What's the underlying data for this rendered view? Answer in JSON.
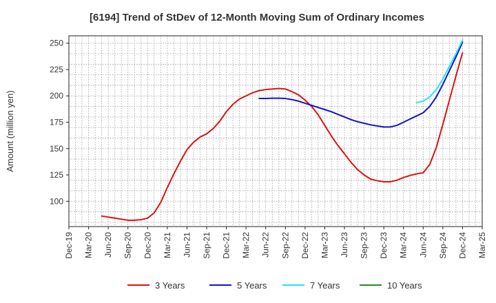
{
  "chart_data": {
    "type": "line",
    "title": "[6194]  Trend of StDev of 12-Month Moving Sum of Ordinary Incomes",
    "ylabel": "Amount (million yen)",
    "xlabel": "",
    "y_ticks": [
      100,
      125,
      150,
      175,
      200,
      225,
      250
    ],
    "ylim": [
      76,
      257
    ],
    "x_ticks": [
      "Dec-19",
      "Mar-20",
      "Jun-20",
      "Sep-20",
      "Dec-20",
      "Mar-21",
      "Jun-21",
      "Sep-21",
      "Dec-21",
      "Mar-22",
      "Jun-22",
      "Sep-22",
      "Dec-22",
      "Mar-23",
      "Jun-23",
      "Sep-23",
      "Dec-23",
      "Mar-24",
      "Jun-24",
      "Sep-24",
      "Dec-24",
      "Mar-25"
    ],
    "xlim": [
      "2019-12",
      "2025-03"
    ],
    "grid": true,
    "legend_position": "bottom",
    "series": [
      {
        "name": "3 Years",
        "color": "#dd1111",
        "points": [
          [
            "2020-05",
            86
          ],
          [
            "2020-06",
            85
          ],
          [
            "2020-07",
            84
          ],
          [
            "2020-08",
            83
          ],
          [
            "2020-09",
            82
          ],
          [
            "2020-10",
            82
          ],
          [
            "2020-11",
            82.5
          ],
          [
            "2020-12",
            84
          ],
          [
            "2021-01",
            89
          ],
          [
            "2021-02",
            99
          ],
          [
            "2021-03",
            113
          ],
          [
            "2021-04",
            126
          ],
          [
            "2021-05",
            138
          ],
          [
            "2021-06",
            149
          ],
          [
            "2021-07",
            156
          ],
          [
            "2021-08",
            161
          ],
          [
            "2021-09",
            164
          ],
          [
            "2021-10",
            169
          ],
          [
            "2021-11",
            176
          ],
          [
            "2021-12",
            185
          ],
          [
            "2022-01",
            192
          ],
          [
            "2022-02",
            197
          ],
          [
            "2022-03",
            200
          ],
          [
            "2022-04",
            203
          ],
          [
            "2022-05",
            205
          ],
          [
            "2022-06",
            206
          ],
          [
            "2022-07",
            206.5
          ],
          [
            "2022-08",
            207
          ],
          [
            "2022-09",
            206.5
          ],
          [
            "2022-10",
            204
          ],
          [
            "2022-11",
            201
          ],
          [
            "2022-12",
            196
          ],
          [
            "2023-01",
            190
          ],
          [
            "2023-02",
            182
          ],
          [
            "2023-03",
            172
          ],
          [
            "2023-04",
            162
          ],
          [
            "2023-05",
            153
          ],
          [
            "2023-06",
            145
          ],
          [
            "2023-07",
            137
          ],
          [
            "2023-08",
            130
          ],
          [
            "2023-09",
            125
          ],
          [
            "2023-10",
            121
          ],
          [
            "2023-11",
            119.5
          ],
          [
            "2023-12",
            118.5
          ],
          [
            "2024-01",
            118.5
          ],
          [
            "2024-02",
            120
          ],
          [
            "2024-03",
            122.5
          ],
          [
            "2024-04",
            124.5
          ],
          [
            "2024-05",
            126
          ],
          [
            "2024-06",
            127
          ],
          [
            "2024-07",
            135
          ],
          [
            "2024-08",
            151
          ],
          [
            "2024-09",
            173
          ],
          [
            "2024-10",
            196
          ],
          [
            "2024-11",
            219
          ],
          [
            "2024-12",
            241
          ]
        ]
      },
      {
        "name": "5 Years",
        "color": "#1111cc",
        "points": [
          [
            "2022-05",
            197.5
          ],
          [
            "2022-06",
            197.5
          ],
          [
            "2022-07",
            197.8
          ],
          [
            "2022-08",
            197.8
          ],
          [
            "2022-09",
            197.5
          ],
          [
            "2022-10",
            196.5
          ],
          [
            "2022-11",
            195
          ],
          [
            "2022-12",
            193
          ],
          [
            "2023-01",
            191
          ],
          [
            "2023-02",
            189
          ],
          [
            "2023-03",
            187
          ],
          [
            "2023-04",
            185
          ],
          [
            "2023-05",
            182.5
          ],
          [
            "2023-06",
            180
          ],
          [
            "2023-07",
            177.5
          ],
          [
            "2023-08",
            175.5
          ],
          [
            "2023-09",
            174
          ],
          [
            "2023-10",
            172.5
          ],
          [
            "2023-11",
            171.5
          ],
          [
            "2023-12",
            170.5
          ],
          [
            "2024-01",
            170.5
          ],
          [
            "2024-02",
            172
          ],
          [
            "2024-03",
            175
          ],
          [
            "2024-04",
            178
          ],
          [
            "2024-05",
            181
          ],
          [
            "2024-06",
            184
          ],
          [
            "2024-07",
            190
          ],
          [
            "2024-08",
            199
          ],
          [
            "2024-09",
            211
          ],
          [
            "2024-10",
            224
          ],
          [
            "2024-11",
            237
          ],
          [
            "2024-12",
            251
          ]
        ]
      },
      {
        "name": "7 Years",
        "color": "#22e6f0",
        "points": [
          [
            "2024-05",
            193.5
          ],
          [
            "2024-06",
            195
          ],
          [
            "2024-07",
            199
          ],
          [
            "2024-08",
            206
          ],
          [
            "2024-09",
            216
          ],
          [
            "2024-10",
            228
          ],
          [
            "2024-11",
            240
          ],
          [
            "2024-12",
            253
          ]
        ]
      },
      {
        "name": "10 Years",
        "color": "#228822",
        "points": []
      }
    ]
  }
}
